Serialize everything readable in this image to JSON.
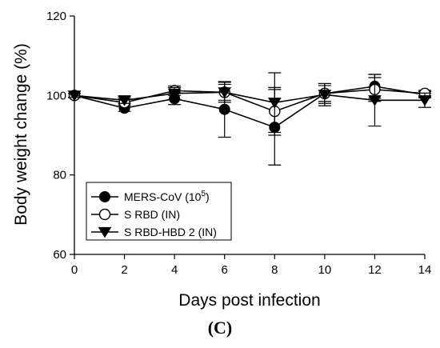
{
  "panel_label": "(C)",
  "chart_data": {
    "type": "line",
    "title": "",
    "xlabel": "Days post infection",
    "ylabel": "Body weight change (%)",
    "xlim": [
      0,
      14
    ],
    "ylim": [
      60,
      120
    ],
    "x_ticks": [
      "0",
      "2",
      "4",
      "6",
      "8",
      "10",
      "12",
      "14"
    ],
    "y_ticks": [
      "60",
      "80",
      "100",
      "120"
    ],
    "grid": false,
    "legend_position": "bottom-left",
    "x": [
      0,
      2,
      4,
      6,
      8,
      10,
      12,
      14
    ],
    "series": [
      {
        "name": "MERS-CoV (10",
        "name_sup": "5",
        "name_end": ")",
        "marker": "filled-circle",
        "values": [
          100,
          96.8,
          99.2,
          96.5,
          92,
          100.5,
          102.3,
          100.2
        ],
        "error": [
          0.5,
          0.8,
          1.5,
          7,
          9.5,
          2.5,
          3,
          0.8
        ]
      },
      {
        "name": "S RBD (IN)",
        "marker": "open-circle",
        "values": [
          100,
          98.2,
          101.2,
          100.8,
          96,
          100.5,
          101.5,
          100.5
        ],
        "error": [
          0.5,
          1,
          1.2,
          2,
          6,
          2,
          3,
          0.8
        ]
      },
      {
        "name": "S RBD-HBD 2 (IN)",
        "marker": "filled-triangle-down",
        "values": [
          100,
          98.8,
          100.5,
          100.8,
          98.2,
          100.2,
          98.8,
          98.8
        ],
        "error": [
          0.5,
          0.8,
          1.5,
          2.5,
          7.5,
          2.8,
          6.5,
          1.8
        ]
      }
    ]
  }
}
